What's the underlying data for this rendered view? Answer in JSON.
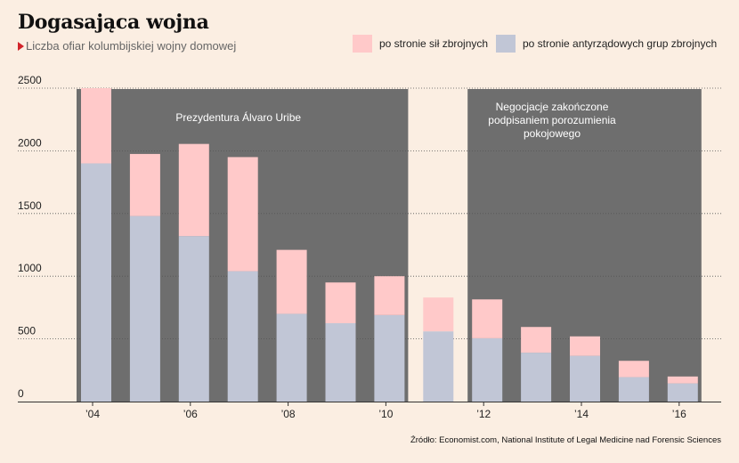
{
  "title": "Dogasająca wojna",
  "subtitle": "Liczba ofiar kolumbijskiej wojny domowej",
  "source": "Źródło: Economist.com, National Institute of Legal Medicine nad Forensic Sciences",
  "colors": {
    "background": "#fbeee2",
    "armed_forces": "#ffc9c9",
    "anti_government": "#c1c6d6",
    "shade": "#6e6e6e",
    "accent": "#d2232a"
  },
  "chart_data": {
    "type": "bar",
    "stacked": true,
    "categories": [
      "2004",
      "2005",
      "2006",
      "2007",
      "2008",
      "2009",
      "2010",
      "2011",
      "2012",
      "2013",
      "2014",
      "2015",
      "2016"
    ],
    "tick_labels": [
      "’04",
      "",
      "’06",
      "",
      "’08",
      "",
      "’10",
      "",
      "’12",
      "",
      "’14",
      "",
      "’16"
    ],
    "series": [
      {
        "name": "po stronie antyrządowych grup zbrojnych",
        "color": "#c1c6d6",
        "values": [
          1900,
          1480,
          1320,
          1040,
          700,
          625,
          690,
          560,
          505,
          390,
          365,
          195,
          145
        ]
      },
      {
        "name": "po stronie sił zbrojnych",
        "color": "#ffc9c9",
        "values": [
          600,
          495,
          735,
          910,
          510,
          325,
          310,
          270,
          310,
          205,
          155,
          130,
          55
        ]
      }
    ],
    "ylim": [
      0,
      2500
    ],
    "yticks": [
      "0",
      "500",
      "1000",
      "1500",
      "2000",
      "2500"
    ],
    "grid": true,
    "legend": "top-right",
    "shaded_periods": [
      {
        "label": "Prezydentura Álvaro Uribe",
        "from": "2004",
        "to": "2010"
      },
      {
        "label": "Negocjacje zakończone podpisaniem porozumienia pokojowego",
        "label_lines": [
          "Negocjacje zakończone",
          "podpisaniem porozumienia",
          "pokojowego"
        ],
        "from": "2012",
        "to": "2016"
      }
    ]
  }
}
